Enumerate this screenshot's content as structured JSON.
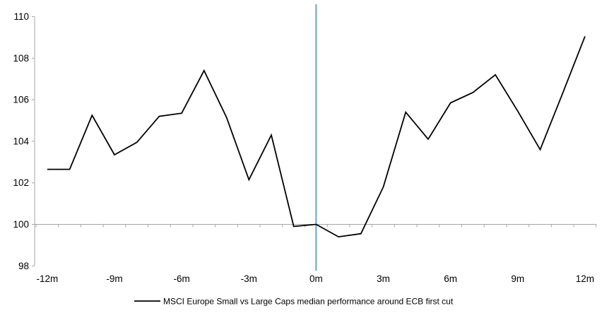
{
  "chart_data": {
    "type": "line",
    "title": "",
    "xlabel": "",
    "ylabel": "",
    "x": [
      -12,
      -11,
      -10,
      -9,
      -8,
      -7,
      -6,
      -5,
      -4,
      -3,
      -2,
      -1,
      0,
      1,
      2,
      3,
      4,
      5,
      6,
      7,
      8,
      9,
      10,
      11,
      12
    ],
    "series": [
      {
        "name": "MSCI Europe Small vs Large Caps median performance around ECB first cut",
        "color": "#000000",
        "values": [
          102.65,
          102.65,
          105.25,
          103.35,
          103.95,
          105.2,
          105.35,
          107.4,
          105.15,
          102.15,
          104.3,
          99.9,
          100.0,
          99.4,
          99.55,
          101.8,
          105.4,
          104.1,
          105.85,
          106.35,
          107.2,
          105.45,
          103.6,
          106.3,
          109.05
        ]
      }
    ],
    "ylim": [
      98,
      110
    ],
    "ytick_step": 2,
    "ytick_labels": [
      "98",
      "100",
      "102",
      "104",
      "106",
      "108",
      "110"
    ],
    "xtick_labels": [
      "-12m",
      "-9m",
      "-6m",
      "-3m",
      "0m",
      "3m",
      "6m",
      "9m",
      "12m"
    ],
    "minor_xtick_range": [
      -12.5,
      12.5
    ],
    "axis_crosses_at": 100,
    "event_line": {
      "x": 0,
      "color": "#75A8D0"
    },
    "axis_color": "#A6A6A6",
    "grid": false,
    "legend_position": "bottom"
  }
}
